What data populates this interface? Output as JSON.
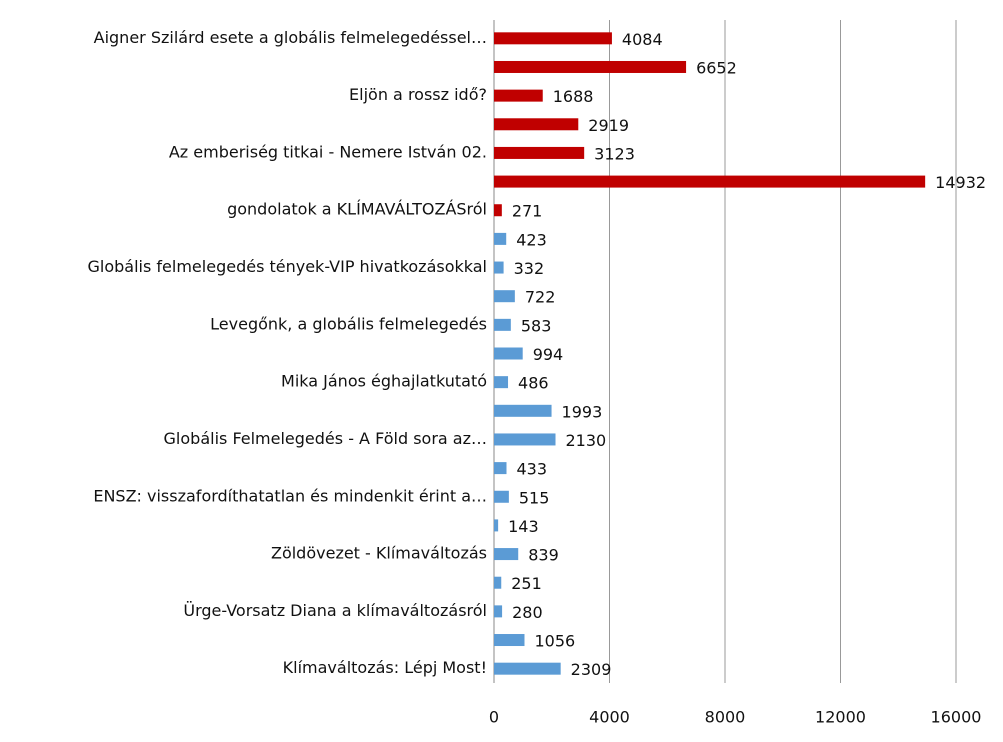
{
  "chart_data": {
    "type": "hbar",
    "categories": [
      "Aigner Szilárd esete a globális felmelegedéssel…",
      null,
      "Eljön a rossz idő?",
      null,
      "Az emberiség titkai - Nemere István 02.",
      null,
      "gondolatok a KLÍMAVÁLTOZÁSról",
      null,
      "Globális felmelegedés tények-VIP hivatkozásokkal",
      null,
      "Levegőnk, a globális felmelegedés",
      null,
      "Mika János éghajlatkutató",
      null,
      "Globális Felmelegedés - A Föld sora az…",
      null,
      "ENSZ: visszafordíthatatlan és mindenkit érint a…",
      null,
      "Zöldövezet - Klímaváltozás",
      null,
      "Ürge-Vorsatz Diana a klímaváltozásról",
      null,
      "Klímaváltozás: Lépj Most!"
    ],
    "values": [
      4084,
      6652,
      1688,
      2919,
      3123,
      14932,
      271,
      423,
      332,
      722,
      583,
      994,
      486,
      1993,
      2130,
      433,
      515,
      143,
      839,
      251,
      280,
      1056,
      2309
    ],
    "colors": [
      "#c00000",
      "#c00000",
      "#c00000",
      "#c00000",
      "#c00000",
      "#c00000",
      "#c00000",
      "#5b9bd5",
      "#5b9bd5",
      "#5b9bd5",
      "#5b9bd5",
      "#5b9bd5",
      "#5b9bd5",
      "#5b9bd5",
      "#5b9bd5",
      "#5b9bd5",
      "#5b9bd5",
      "#5b9bd5",
      "#5b9bd5",
      "#5b9bd5",
      "#5b9bd5",
      "#5b9bd5",
      "#5b9bd5"
    ],
    "xlim": [
      0,
      16000
    ],
    "xticks": [
      0,
      4000,
      8000,
      12000,
      16000
    ],
    "grid": true
  }
}
